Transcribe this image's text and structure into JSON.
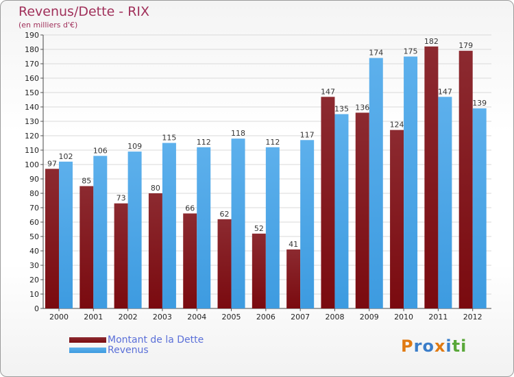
{
  "title": "Revenus/Dette - RIX",
  "subtitle": "(en milliers d'€)",
  "colors": {
    "dette": "#7a0a0f",
    "revenus": "#3d9be0",
    "title": "#a0305a",
    "legend_text": "#5a6fd8"
  },
  "legend": {
    "dette": "Montant de la Dette",
    "revenus": "Revenus"
  },
  "logo": {
    "text": "Proxiti",
    "letters": [
      "P",
      "r",
      "o",
      "x",
      "i",
      "t",
      "i"
    ],
    "letter_colors": [
      "#e07a12",
      "#3a7dc9",
      "#3a7dc9",
      "#e07a12",
      "#3a7dc9",
      "#5aa83a",
      "#5aa83a"
    ]
  },
  "chart_data": {
    "type": "bar",
    "title": "Revenus/Dette - RIX",
    "subtitle": "(en milliers d'€)",
    "categories": [
      "2000",
      "2001",
      "2002",
      "2003",
      "2004",
      "2005",
      "2006",
      "2007",
      "2008",
      "2009",
      "2010",
      "2011",
      "2012"
    ],
    "series": [
      {
        "name": "Montant de la Dette",
        "values": [
          97,
          85,
          73,
          80,
          66,
          62,
          52,
          41,
          147,
          136,
          124,
          182,
          179
        ]
      },
      {
        "name": "Revenus",
        "values": [
          102,
          106,
          109,
          115,
          112,
          118,
          112,
          117,
          135,
          174,
          175,
          147,
          139
        ]
      }
    ],
    "ylim": [
      0,
      190
    ],
    "yticks": [
      0,
      10,
      20,
      30,
      40,
      50,
      60,
      70,
      80,
      90,
      100,
      110,
      120,
      130,
      140,
      150,
      160,
      170,
      180,
      190
    ],
    "grid": true,
    "legend_position": "bottom-left"
  }
}
